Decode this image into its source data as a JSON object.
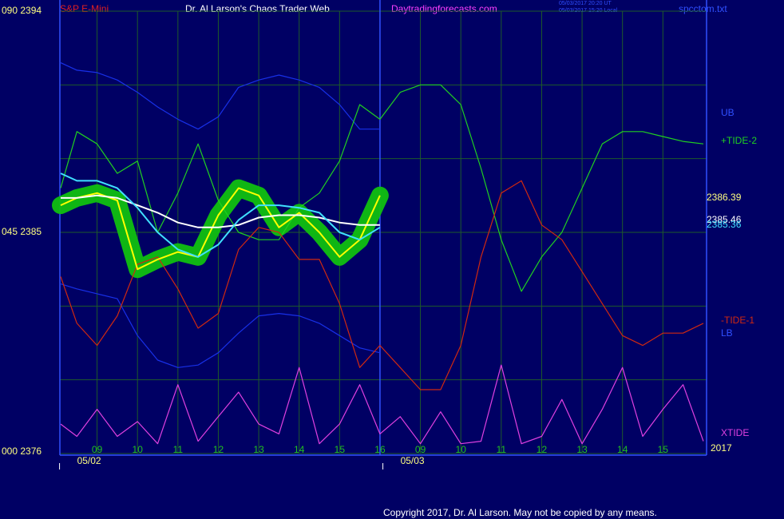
{
  "header": {
    "symbol": "S&P E-Mini",
    "title": "Dr. Al Larson's Chaos Trader Web",
    "site": "Daytradingforecasts.com",
    "time_ut": "05/03/2017 20:20 UT",
    "time_local": "05/03/2017 15:20 Local",
    "file": "spcctom.txt"
  },
  "footer": "Copyright 2017, Dr. Al Larson. May not be copied by any means.",
  "chart_data": {
    "type": "line",
    "x": [
      -0.9,
      -0.5,
      0,
      0.5,
      1,
      1.5,
      2,
      2.5,
      3,
      3.5,
      4,
      4.5,
      5,
      5.5,
      6,
      6.5,
      7,
      7.5,
      8,
      8.5,
      9,
      9.5,
      10,
      10.5,
      11,
      11.5,
      12,
      12.5,
      13,
      13.5,
      14,
      14.5,
      15
    ],
    "xlim": [
      -0.92,
      15.08
    ],
    "xticks": [
      {
        "value": 0,
        "label": "09"
      },
      {
        "value": 1,
        "label": "10"
      },
      {
        "value": 2,
        "label": "11"
      },
      {
        "value": 3,
        "label": "12"
      },
      {
        "value": 4,
        "label": "13"
      },
      {
        "value": 5,
        "label": "14"
      },
      {
        "value": 6,
        "label": "15"
      },
      {
        "value": 7,
        "label": "16"
      },
      {
        "value": 8,
        "label": "09"
      },
      {
        "value": 9,
        "label": "10"
      },
      {
        "value": 10,
        "label": "11"
      },
      {
        "value": 11,
        "label": "12"
      },
      {
        "value": 12,
        "label": "13"
      },
      {
        "value": 13,
        "label": "14"
      },
      {
        "value": 14,
        "label": "15"
      }
    ],
    "ylim": [
      2376,
      2394
    ],
    "yticks": [
      {
        "value": 2394,
        "label": "090  2394"
      },
      {
        "value": 2385,
        "label": "045  2385"
      },
      {
        "value": 2376,
        "label": "000  2376"
      }
    ],
    "ygrid": [
      2391,
      2388,
      2382,
      2379
    ],
    "grid": true,
    "date_labels": [
      {
        "value": 0,
        "label": "05/02"
      },
      {
        "value": 8,
        "label": "05/03"
      }
    ],
    "year_label": "2017",
    "divider": 7,
    "series": [
      {
        "name": "UB",
        "color": "#1830e8",
        "values": [
          2391.9,
          2391.6,
          2391.5,
          2391.2,
          2390.7,
          2390.1,
          2389.6,
          2389.2,
          2389.7,
          2390.9,
          2391.2,
          2391.4,
          2391.2,
          2390.9,
          2390.2,
          2389.2,
          2389.2,
          null,
          null,
          null,
          null,
          null,
          null,
          null,
          null,
          null,
          null,
          null,
          null,
          null,
          null,
          null,
          null
        ]
      },
      {
        "name": "LB",
        "color": "#1830e8",
        "values": [
          2382.9,
          2382.7,
          2382.5,
          2382.3,
          2380.8,
          2379.8,
          2379.5,
          2379.6,
          2380.1,
          2380.9,
          2381.6,
          2381.7,
          2381.6,
          2381.3,
          2380.8,
          2380.3,
          2380.1,
          null,
          null,
          null,
          null,
          null,
          null,
          null,
          null,
          null,
          null,
          null,
          null,
          null,
          null,
          null,
          null
        ]
      },
      {
        "name": "+TIDE-2",
        "color": "#20d020",
        "values": [
          2386.8,
          2389.1,
          2388.6,
          2387.4,
          2387.9,
          2385.0,
          2386.6,
          2388.6,
          2386.3,
          2385.0,
          2384.7,
          2384.7,
          2386.0,
          2386.6,
          2387.9,
          2390.2,
          2389.6,
          2390.7,
          2391.0,
          2391.0,
          2390.2,
          2387.6,
          2384.7,
          2382.6,
          2384.0,
          2385.0,
          2386.8,
          2388.6,
          2389.1,
          2389.1,
          2388.9,
          2388.7,
          2388.6
        ]
      },
      {
        "name": "-TIDE-1",
        "color": "#d02810",
        "values": [
          2383.2,
          2381.3,
          2380.4,
          2381.6,
          2383.7,
          2384.0,
          2382.7,
          2381.1,
          2381.7,
          2384.3,
          2385.2,
          2385.0,
          2383.9,
          2383.9,
          2382.1,
          2379.5,
          2380.4,
          2379.5,
          2378.6,
          2378.6,
          2380.4,
          2384.0,
          2386.6,
          2387.1,
          2385.3,
          2384.7,
          2383.4,
          2382.1,
          2380.8,
          2380.4,
          2380.9,
          2380.9,
          2381.3
        ]
      },
      {
        "name": "XTIDE",
        "color": "#e040e0",
        "values": [
          2377.2,
          2376.7,
          2377.8,
          2376.7,
          2377.3,
          2376.4,
          2378.8,
          2376.5,
          2377.5,
          2378.5,
          2377.2,
          2376.8,
          2379.5,
          2376.4,
          2377.2,
          2378.8,
          2376.8,
          2377.5,
          2376.4,
          2377.7,
          2376.4,
          2376.5,
          2379.6,
          2376.4,
          2376.7,
          2378.2,
          2376.4,
          2377.8,
          2379.5,
          2376.7,
          2377.8,
          2378.8,
          2376.5
        ]
      },
      {
        "color": "#ffff00",
        "halo": "#10c010",
        "values": [
          2386.1,
          2386.4,
          2386.6,
          2386.3,
          2383.5,
          2383.9,
          2384.2,
          2384.0,
          2385.7,
          2386.8,
          2386.5,
          2385.2,
          2385.8,
          2385.0,
          2384.0,
          2384.7,
          2386.5,
          null,
          null,
          null,
          null,
          null,
          null,
          null,
          null,
          null,
          null,
          null,
          null,
          null,
          null,
          null,
          null
        ]
      },
      {
        "color": "#ffffff",
        "values": [
          2386.4,
          2386.4,
          2386.5,
          2386.4,
          2386.1,
          2385.8,
          2385.4,
          2385.2,
          2385.2,
          2385.3,
          2385.6,
          2385.7,
          2385.7,
          2385.6,
          2385.4,
          2385.3,
          2385.3,
          null,
          null,
          null,
          null,
          null,
          null,
          null,
          null,
          null,
          null,
          null,
          null,
          null,
          null,
          null,
          null
        ]
      },
      {
        "color": "#40e0ff",
        "values": [
          2387.4,
          2387.1,
          2387.1,
          2386.8,
          2386.0,
          2385.0,
          2384.3,
          2384.0,
          2384.5,
          2385.5,
          2386.1,
          2386.1,
          2386.0,
          2385.8,
          2385.0,
          2384.7,
          2385.2,
          null,
          null,
          null,
          null,
          null,
          null,
          null,
          null,
          null,
          null,
          null,
          null,
          null,
          null,
          null,
          null
        ]
      }
    ],
    "annotations": [
      {
        "text": "2386.39",
        "color": "#ffff80"
      },
      {
        "text": "2385.46",
        "color": "#ffffff"
      },
      {
        "text": "2385.36",
        "color": "#40e0ff"
      }
    ]
  }
}
